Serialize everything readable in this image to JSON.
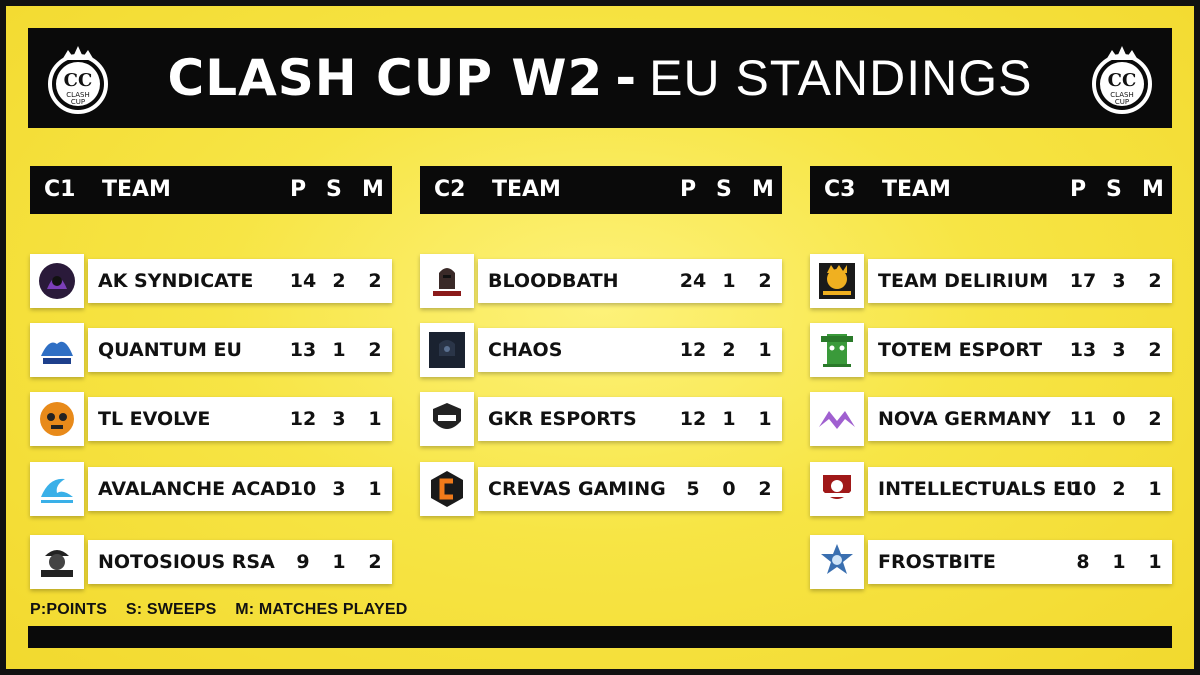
{
  "header": {
    "title_main": "CLASH CUP W2",
    "title_dash": "-",
    "title_sub": "EU STANDINGS",
    "logo_text_top": "CLASH",
    "logo_text_bottom": "CUP",
    "logo_monogram": "CC"
  },
  "columns": {
    "team": "TEAM",
    "p": "P",
    "s": "S",
    "m": "M"
  },
  "groups": [
    {
      "code": "C1",
      "teams": [
        {
          "name": "AK SYNDICATE",
          "p": "14",
          "s": "2",
          "m": "2",
          "logo_icon": "ak-syndicate-logo"
        },
        {
          "name": "QUANTUM EU",
          "p": "13",
          "s": "1",
          "m": "2",
          "logo_icon": "quantum-logo"
        },
        {
          "name": "TL EVOLVE",
          "p": "12",
          "s": "3",
          "m": "1",
          "logo_icon": "tl-evolve-logo"
        },
        {
          "name": "AVALANCHE ACAD",
          "p": "10",
          "s": "3",
          "m": "1",
          "logo_icon": "avalanche-logo"
        },
        {
          "name": "NOTOSIOUS RSA",
          "p": "9",
          "s": "1",
          "m": "2",
          "logo_icon": "notorious-logo"
        }
      ]
    },
    {
      "code": "C2",
      "teams": [
        {
          "name": "BLOODBATH",
          "p": "24",
          "s": "1",
          "m": "2",
          "logo_icon": "bloodbath-logo"
        },
        {
          "name": "CHAOS",
          "p": "12",
          "s": "2",
          "m": "1",
          "logo_icon": "chaos-logo"
        },
        {
          "name": "GKR ESPORTS",
          "p": "12",
          "s": "1",
          "m": "1",
          "logo_icon": "gkr-logo"
        },
        {
          "name": "CREVAS GAMING",
          "p": "5",
          "s": "0",
          "m": "2",
          "logo_icon": "crevas-logo"
        }
      ]
    },
    {
      "code": "C3",
      "teams": [
        {
          "name": "TEAM DELIRIUM",
          "p": "17",
          "s": "3",
          "m": "2",
          "logo_icon": "delirium-logo"
        },
        {
          "name": "TOTEM ESPORT",
          "p": "13",
          "s": "3",
          "m": "2",
          "logo_icon": "totem-logo"
        },
        {
          "name": "NOVA GERMANY",
          "p": "11",
          "s": "0",
          "m": "2",
          "logo_icon": "nova-logo"
        },
        {
          "name": "INTELLECTUALS EU",
          "p": "10",
          "s": "2",
          "m": "1",
          "logo_icon": "intellectuals-logo"
        },
        {
          "name": "FROSTBITE",
          "p": "8",
          "s": "1",
          "m": "1",
          "logo_icon": "frostbite-logo"
        }
      ]
    }
  ],
  "legend": {
    "points": "P:POINTS",
    "sweeps": "S: SWEEPS",
    "matches": "M: MATCHES PLAYED"
  },
  "colors": {
    "background": "#f7e545",
    "bar": "#0a0a0a",
    "card": "#ffffff"
  }
}
